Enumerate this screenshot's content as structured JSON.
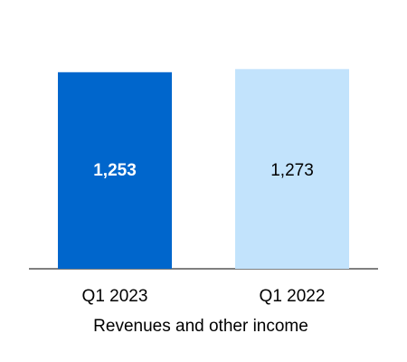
{
  "chart_data": {
    "type": "bar",
    "categories": [
      "Q1 2023",
      "Q1 2022"
    ],
    "values": [
      1253,
      1273
    ],
    "value_labels": [
      "1,253",
      "1,273"
    ],
    "xlabel": "Revenues and other income",
    "ylim": [
      0,
      1298
    ],
    "grid": false,
    "bar_colors": [
      "#0066cc",
      "#c2e3fc"
    ],
    "label_colors": [
      "#ffffff",
      "#000000"
    ],
    "axis_color": "#555555"
  }
}
